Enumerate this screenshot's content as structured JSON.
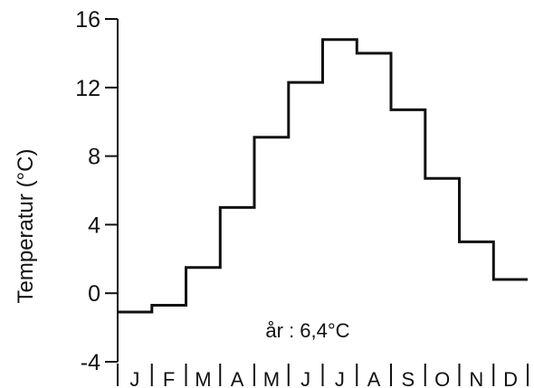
{
  "chart_data": {
    "type": "line",
    "step": true,
    "ylabel": "Temperatur (°C)",
    "ylim": [
      -4,
      16
    ],
    "yticks": [
      -4,
      0,
      4,
      8,
      12,
      16
    ],
    "categories": [
      "J",
      "F",
      "M",
      "A",
      "M",
      "J",
      "J",
      "A",
      "S",
      "O",
      "N",
      "D"
    ],
    "values": [
      -1.1,
      -0.7,
      1.5,
      5.0,
      9.1,
      12.3,
      14.8,
      14.0,
      10.7,
      6.7,
      3.0,
      0.8
    ],
    "annotation": "år : 6,4°C",
    "grid": false,
    "color": "#111111"
  }
}
